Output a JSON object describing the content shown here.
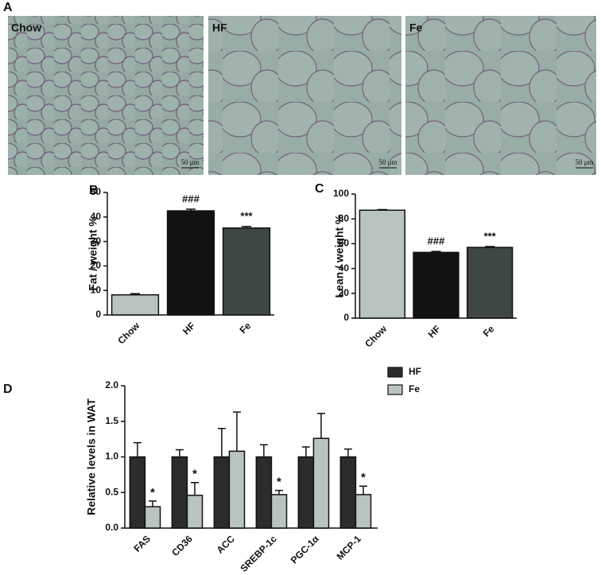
{
  "panel_a": {
    "panel_label": "A",
    "images": [
      {
        "label": "Chow",
        "scale_bar": "50 μm"
      },
      {
        "label": "HF",
        "scale_bar": "50 μm"
      },
      {
        "label": "Fe",
        "scale_bar": "50 μm"
      }
    ]
  },
  "chart_data": [
    {
      "type": "bar",
      "panel_label": "B",
      "y_label": "Fat / weight %",
      "categories": [
        "Chow",
        "HF",
        "Fe"
      ],
      "values": [
        8.2,
        42.5,
        35.5
      ],
      "errors": [
        0.5,
        0.7,
        0.6
      ],
      "colors": [
        "#b9c4c1",
        "#121212",
        "#3e4746"
      ],
      "annotations": [
        null,
        "###",
        "***"
      ],
      "ylim": [
        0,
        50
      ],
      "yticks": [
        0,
        10,
        20,
        30,
        40,
        50
      ]
    },
    {
      "type": "bar",
      "panel_label": "C",
      "y_label": "Lean / weight %",
      "categories": [
        "Chow",
        "HF",
        "Fe"
      ],
      "values": [
        87,
        53,
        57
      ],
      "errors": [
        0.5,
        0.8,
        0.7
      ],
      "colors": [
        "#b9c4c1",
        "#121212",
        "#3e4746"
      ],
      "annotations": [
        null,
        "###",
        "***"
      ],
      "ylim": [
        0,
        100
      ],
      "yticks": [
        0,
        20,
        40,
        60,
        80,
        100
      ]
    },
    {
      "type": "grouped-bar",
      "panel_label": "D",
      "y_label": "Relative levels in WAT",
      "categories": [
        "FAS",
        "CD36",
        "ACC",
        "SREBP-1c",
        "PGC-1α",
        "MCP-1"
      ],
      "series": [
        {
          "name": "HF",
          "color": "#2c2c2c",
          "values": [
            1.0,
            1.0,
            1.0,
            1.0,
            1.0,
            1.0
          ],
          "errors": [
            0.2,
            0.1,
            0.4,
            0.17,
            0.14,
            0.11
          ],
          "annotations": [
            null,
            null,
            null,
            null,
            null,
            null
          ]
        },
        {
          "name": "Fe",
          "color": "#b9c4c1",
          "values": [
            0.3,
            0.46,
            1.08,
            0.47,
            1.26,
            0.47
          ],
          "errors": [
            0.08,
            0.18,
            0.55,
            0.06,
            0.35,
            0.12
          ],
          "annotations": [
            "*",
            "*",
            null,
            "*",
            null,
            "*"
          ]
        }
      ],
      "ylim": [
        0,
        2.0
      ],
      "yticks": [
        {
          "value": 0,
          "label": "0.0"
        },
        0.5,
        {
          "value": 1,
          "label": "1.0"
        },
        1.5,
        {
          "value": 2,
          "label": "2.0"
        }
      ],
      "legend": "top-right"
    }
  ]
}
